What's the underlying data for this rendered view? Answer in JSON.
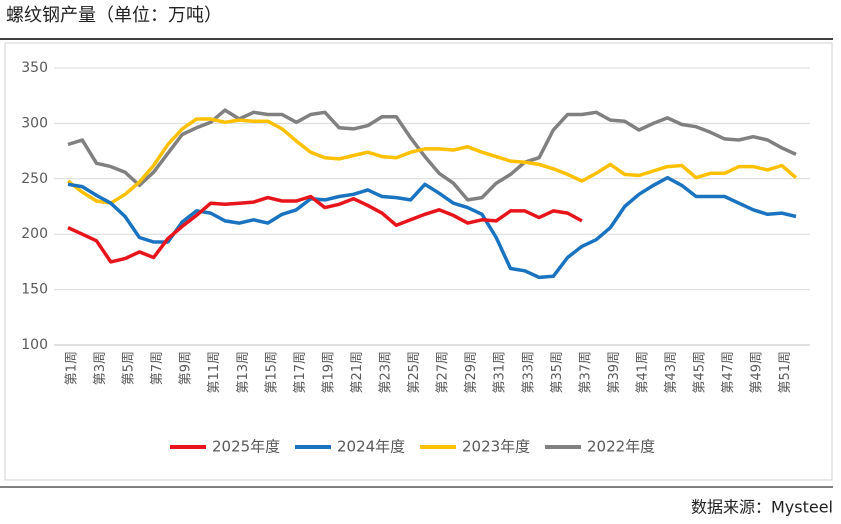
{
  "chart_data": {
    "type": "line",
    "title": "螺纹钢产量（单位：万吨）",
    "source": "数据来源：Mysteel",
    "categories": [
      "第1周",
      null,
      "第3周",
      null,
      "第5周",
      null,
      "第7周",
      null,
      "第9周",
      null,
      "第11周",
      null,
      "第13周",
      null,
      "第15周",
      null,
      "第17周",
      null,
      "第19周",
      null,
      "第21周",
      null,
      "第23周",
      null,
      "第25周",
      null,
      "第27周",
      null,
      "第29周",
      null,
      "第31周",
      null,
      "第33周",
      null,
      "第35周",
      null,
      "第37周",
      null,
      "第39周",
      null,
      "第41周",
      null,
      "第43周",
      null,
      "第45周",
      null,
      "第47周",
      null,
      "第49周",
      null,
      "第51周",
      null
    ],
    "series": [
      {
        "name": "2025年度",
        "color": "#e8141b",
        "values": [
          206,
          200,
          194,
          175,
          178,
          184,
          179,
          196,
          207,
          217,
          228,
          227,
          228,
          229,
          233,
          230,
          230,
          234,
          224,
          227,
          232,
          226,
          219,
          208,
          213,
          218,
          222,
          217,
          210,
          213,
          212,
          221,
          221,
          215,
          221,
          219,
          212,
          null,
          null,
          null,
          null,
          null,
          null,
          null,
          null,
          null,
          null,
          null,
          null,
          null,
          null,
          null
        ]
      },
      {
        "name": "2024年度",
        "color": "#1a73c0",
        "values": [
          245,
          243,
          235,
          228,
          216,
          197,
          193,
          193,
          211,
          221,
          219,
          212,
          210,
          213,
          210,
          218,
          222,
          232,
          231,
          234,
          236,
          240,
          234,
          233,
          231,
          245,
          237,
          228,
          224,
          218,
          197,
          169,
          167,
          161,
          162,
          179,
          189,
          195,
          206,
          225,
          236,
          244,
          251,
          244,
          234,
          234,
          234,
          228,
          222,
          218,
          219,
          216
        ]
      },
      {
        "name": "2023年度",
        "color": "#ffc000",
        "values": [
          248,
          238,
          230,
          228,
          236,
          247,
          262,
          281,
          295,
          304,
          304,
          301,
          303,
          302,
          302,
          295,
          284,
          274,
          269,
          268,
          271,
          274,
          270,
          269,
          274,
          277,
          277,
          276,
          279,
          274,
          270,
          266,
          265,
          263,
          259,
          254,
          248,
          255,
          263,
          254,
          253,
          257,
          261,
          262,
          251,
          255,
          255,
          261,
          261,
          258,
          262,
          251
        ]
      },
      {
        "name": "2022年度",
        "color": "#808080",
        "values": [
          281,
          285,
          264,
          261,
          256,
          244,
          256,
          273,
          290,
          296,
          301,
          312,
          304,
          310,
          308,
          308,
          301,
          308,
          310,
          296,
          295,
          298,
          306,
          306,
          287,
          270,
          255,
          246,
          231,
          233,
          246,
          254,
          265,
          269,
          294,
          308,
          308,
          310,
          303,
          302,
          294,
          300,
          305,
          299,
          297,
          292,
          286,
          285,
          288,
          285,
          278,
          272
        ]
      }
    ],
    "ylim": [
      100,
      350
    ],
    "yticks": [
      100,
      150,
      200,
      250,
      300,
      350
    ],
    "grid": true
  }
}
